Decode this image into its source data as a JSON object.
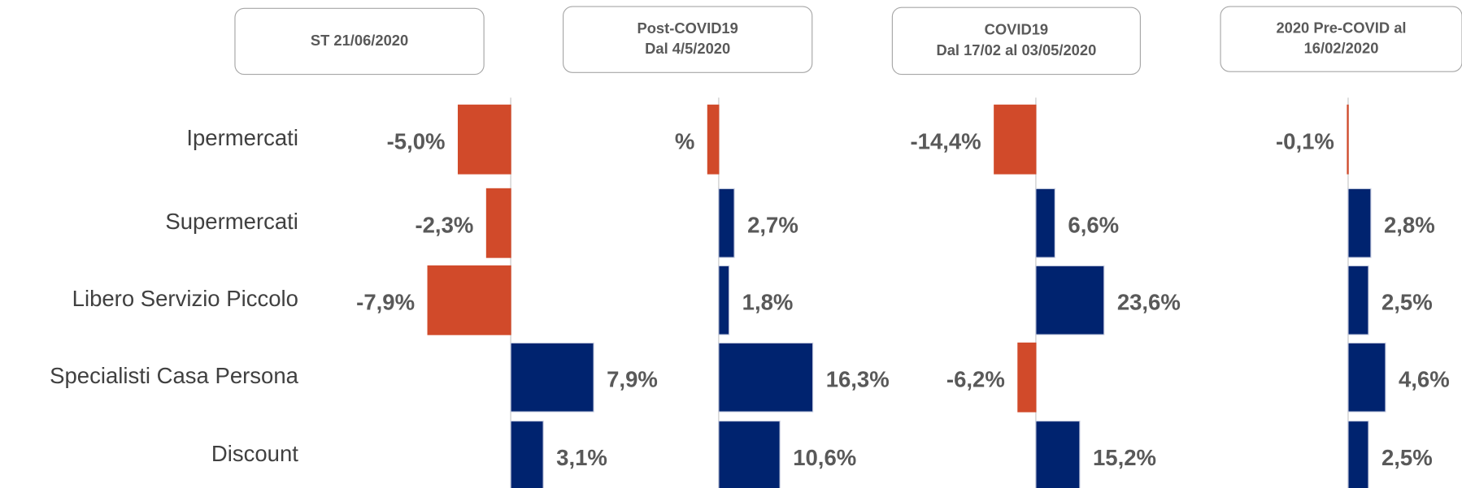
{
  "chart_data": [
    {
      "type": "bar",
      "orientation": "horizontal",
      "title": [
        "ST 21/06/2020"
      ],
      "categories": [
        "Ipermercati",
        "Supermercati",
        "Libero Servizio Piccolo",
        "Specialisti Casa Persona",
        "Discount"
      ],
      "values": [
        -5.0,
        -2.3,
        -7.9,
        7.9,
        3.1
      ],
      "value_labels": [
        "-5,0%",
        "-2,3%",
        "-7,9%",
        "7,9%",
        "3,1%"
      ],
      "xlim": [
        -14.9,
        15.3
      ],
      "color": "#00236f",
      "negative_color": "#d14a2a"
    },
    {
      "type": "bar",
      "orientation": "horizontal",
      "title": [
        "Post-COVID19",
        "Dal 4/5/2020"
      ],
      "values": [
        -1.9,
        2.7,
        1.8,
        16.3,
        10.6
      ],
      "value_labels": [
        "%",
        "2,7%",
        "1,8%",
        "16,3%",
        "10,6%"
      ],
      "xlim": [
        -8.2,
        37
      ],
      "color": "#00236f",
      "negative_color": "#d14a2a"
    },
    {
      "type": "bar",
      "orientation": "horizontal",
      "title": [
        "COVID19",
        "Dal 17/02 al 03/05/2020"
      ],
      "values": [
        -14.4,
        6.6,
        23.6,
        -6.2,
        15.2
      ],
      "value_labels": [
        "-14,4%",
        "6,6%",
        "23,6%",
        "-6,2%",
        "15,2%"
      ],
      "xlim": [
        -48.7,
        61
      ],
      "color": "#00236f",
      "negative_color": "#d14a2a"
    },
    {
      "type": "bar",
      "orientation": "horizontal",
      "title": [
        "2020 Pre-COVID  al",
        "16/02/2020"
      ],
      "values": [
        -0.1,
        2.8,
        2.5,
        4.6,
        2.5
      ],
      "value_labels": [
        "-0,1%",
        "2,8%",
        "2,5%",
        "4,6%",
        "2,5%"
      ],
      "xlim": [
        -13.3,
        13.1
      ],
      "color": "#00236f",
      "negative_color": "#d14a2a"
    }
  ]
}
